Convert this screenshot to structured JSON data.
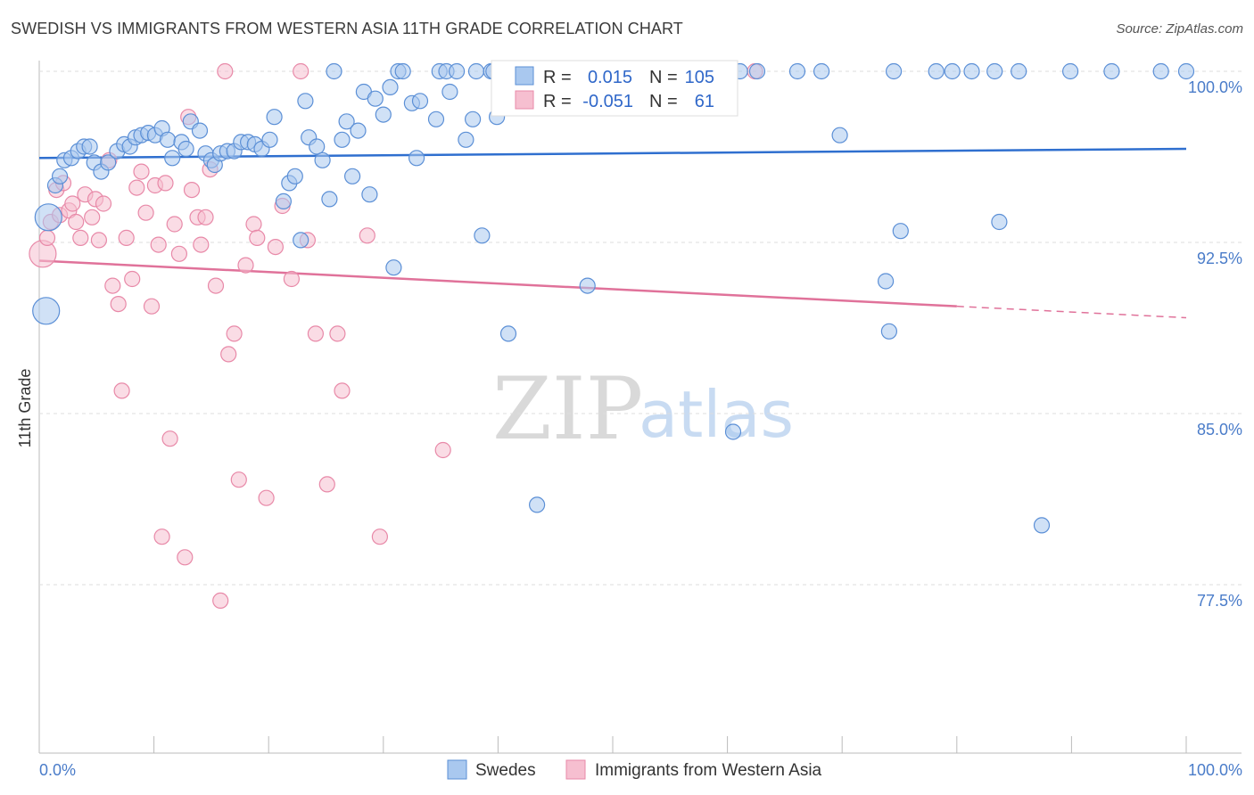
{
  "header": {
    "title": "SWEDISH VS IMMIGRANTS FROM WESTERN ASIA 11TH GRADE CORRELATION CHART",
    "source": "Source: ZipAtlas.com"
  },
  "watermark": {
    "zip": "ZIP",
    "atlas": "atlas"
  },
  "colors": {
    "swedes_fill": "#a9c8ef",
    "swedes_stroke": "#5b8fd6",
    "swedes_line": "#2f6fcf",
    "immig_fill": "#f6bfd0",
    "immig_stroke": "#e889a8",
    "immig_line": "#e0729a",
    "tick_text": "#4a7cc9"
  },
  "stats": {
    "swedes": {
      "r_label": "R =",
      "r_value": "0.015",
      "n_label": "N =",
      "n_value": "105"
    },
    "immig": {
      "r_label": "R =",
      "r_value": "-0.051",
      "n_label": "N =",
      "n_value": "61"
    }
  },
  "chart_data": {
    "type": "scatter",
    "title": "SWEDISH VS IMMIGRANTS FROM WESTERN ASIA 11TH GRADE CORRELATION CHART",
    "xlabel": "",
    "ylabel": "11th Grade",
    "xlim": [
      0,
      100
    ],
    "ylim": [
      70.5,
      101.5
    ],
    "x_tick_labels": [
      "0.0%",
      "100.0%"
    ],
    "y_ticks": [
      100.0,
      92.5,
      85.0,
      77.5
    ],
    "y_tick_labels": [
      "100.0%",
      "92.5%",
      "85.0%",
      "77.5%"
    ],
    "grid": "horizontal dashed",
    "legend_position": "bottom-center",
    "series": [
      {
        "name": "Swedes",
        "trend": {
          "x0": 0,
          "y0": 96.2,
          "x1": 100,
          "y1": 96.6,
          "dashed_from": null
        },
        "points": [
          [
            0.6,
            89.5,
            2
          ],
          [
            0.8,
            93.6,
            2
          ],
          [
            1.4,
            95.0,
            1
          ],
          [
            1.8,
            95.4,
            1
          ],
          [
            2.2,
            96.1,
            1
          ],
          [
            2.8,
            96.2,
            1
          ],
          [
            3.4,
            96.5,
            1
          ],
          [
            3.9,
            96.7,
            1
          ],
          [
            4.4,
            96.7,
            1
          ],
          [
            4.8,
            96.0,
            1
          ],
          [
            5.4,
            95.6,
            1
          ],
          [
            6.0,
            96.0,
            1
          ],
          [
            6.8,
            96.5,
            1
          ],
          [
            7.4,
            96.8,
            1
          ],
          [
            7.9,
            96.7,
            1
          ],
          [
            8.4,
            97.1,
            1
          ],
          [
            8.9,
            97.2,
            1
          ],
          [
            9.5,
            97.3,
            1
          ],
          [
            10.1,
            97.2,
            1
          ],
          [
            10.7,
            97.5,
            1
          ],
          [
            11.2,
            97.0,
            1
          ],
          [
            11.6,
            96.2,
            1
          ],
          [
            12.4,
            96.9,
            1
          ],
          [
            12.8,
            96.6,
            1
          ],
          [
            13.2,
            97.8,
            1
          ],
          [
            14.0,
            97.4,
            1
          ],
          [
            14.5,
            96.4,
            1
          ],
          [
            15.0,
            96.1,
            1
          ],
          [
            15.3,
            95.9,
            1
          ],
          [
            15.8,
            96.4,
            1
          ],
          [
            16.4,
            96.5,
            1
          ],
          [
            17.0,
            96.5,
            1
          ],
          [
            17.6,
            96.9,
            1
          ],
          [
            18.2,
            96.9,
            1
          ],
          [
            18.8,
            96.8,
            1
          ],
          [
            19.4,
            96.6,
            1
          ],
          [
            20.1,
            97.0,
            1
          ],
          [
            20.5,
            98.0,
            1
          ],
          [
            21.3,
            94.3,
            1
          ],
          [
            21.8,
            95.1,
            1
          ],
          [
            22.3,
            95.4,
            1
          ],
          [
            22.8,
            92.6,
            1
          ],
          [
            23.2,
            98.7,
            1
          ],
          [
            23.5,
            97.1,
            1
          ],
          [
            24.2,
            96.7,
            1
          ],
          [
            24.7,
            96.1,
            1
          ],
          [
            25.3,
            94.4,
            1
          ],
          [
            25.7,
            100.0,
            1
          ],
          [
            26.4,
            97.0,
            1
          ],
          [
            26.8,
            97.8,
            1
          ],
          [
            27.3,
            95.4,
            1
          ],
          [
            27.8,
            97.4,
            1
          ],
          [
            28.3,
            99.1,
            1
          ],
          [
            28.8,
            94.6,
            1
          ],
          [
            29.3,
            98.8,
            1
          ],
          [
            30.0,
            98.1,
            1
          ],
          [
            30.6,
            99.3,
            1
          ],
          [
            30.9,
            91.4,
            1
          ],
          [
            31.3,
            100.0,
            1
          ],
          [
            31.7,
            100.0,
            1
          ],
          [
            32.5,
            98.6,
            1
          ],
          [
            32.9,
            96.2,
            1
          ],
          [
            33.2,
            98.7,
            1
          ],
          [
            34.6,
            97.9,
            1
          ],
          [
            34.9,
            100.0,
            1
          ],
          [
            35.5,
            100.0,
            1
          ],
          [
            35.8,
            99.1,
            1
          ],
          [
            36.4,
            100.0,
            1
          ],
          [
            37.2,
            97.0,
            1
          ],
          [
            37.8,
            97.9,
            1
          ],
          [
            38.1,
            100.0,
            1
          ],
          [
            38.6,
            92.8,
            1
          ],
          [
            39.4,
            100.0,
            1
          ],
          [
            39.6,
            100.0,
            1
          ],
          [
            39.9,
            98.0,
            1
          ],
          [
            40.9,
            88.5,
            1
          ],
          [
            42.3,
            100.0,
            1
          ],
          [
            42.8,
            100.0,
            1
          ],
          [
            43.4,
            81.0,
            1
          ],
          [
            44.2,
            100.0,
            1
          ],
          [
            45.8,
            100.0,
            1
          ],
          [
            46.3,
            100.0,
            1
          ],
          [
            47.8,
            90.6,
            1
          ],
          [
            48.5,
            100.0,
            1
          ],
          [
            49.6,
            100.0,
            1
          ],
          [
            50.1,
            100.0,
            1
          ],
          [
            50.8,
            100.0,
            1
          ],
          [
            52.2,
            100.0,
            1
          ],
          [
            52.9,
            100.0,
            1
          ],
          [
            53.4,
            100.0,
            1
          ],
          [
            54.3,
            100.0,
            1
          ],
          [
            54.8,
            100.0,
            1
          ],
          [
            55.3,
            100.0,
            1
          ],
          [
            56.8,
            100.0,
            1
          ],
          [
            60.5,
            84.2,
            1
          ],
          [
            61.1,
            100.0,
            1
          ],
          [
            62.6,
            100.0,
            1
          ],
          [
            66.1,
            100.0,
            1
          ],
          [
            68.2,
            100.0,
            1
          ],
          [
            69.8,
            97.2,
            1
          ],
          [
            73.8,
            90.8,
            1
          ],
          [
            74.1,
            88.6,
            1
          ],
          [
            74.5,
            100.0,
            1
          ],
          [
            75.1,
            93.0,
            1
          ],
          [
            78.2,
            100.0,
            1
          ],
          [
            79.6,
            100.0,
            1
          ],
          [
            81.3,
            100.0,
            1
          ],
          [
            83.3,
            100.0,
            1
          ],
          [
            83.7,
            93.4,
            1
          ],
          [
            85.4,
            100.0,
            1
          ],
          [
            87.4,
            80.1,
            1
          ],
          [
            89.9,
            100.0,
            1
          ],
          [
            93.5,
            100.0,
            1
          ],
          [
            97.8,
            100.0,
            1
          ],
          [
            100.0,
            100.0,
            1
          ]
        ]
      },
      {
        "name": "Immigrants from Western Asia",
        "trend": {
          "x0": 0,
          "y0": 91.7,
          "x1": 80,
          "y1": 89.7,
          "dashed_from": 80,
          "x2": 100,
          "y2": 89.2
        },
        "points": [
          [
            0.3,
            92.0,
            2
          ],
          [
            0.7,
            92.7,
            1
          ],
          [
            1.0,
            93.4,
            1
          ],
          [
            1.5,
            94.8,
            1
          ],
          [
            1.8,
            93.7,
            1
          ],
          [
            2.1,
            95.1,
            1
          ],
          [
            2.6,
            93.9,
            1
          ],
          [
            2.9,
            94.2,
            1
          ],
          [
            3.2,
            93.4,
            1
          ],
          [
            3.6,
            92.7,
            1
          ],
          [
            4.0,
            94.6,
            1
          ],
          [
            4.6,
            93.6,
            1
          ],
          [
            4.9,
            94.4,
            1
          ],
          [
            5.2,
            92.6,
            1
          ],
          [
            5.6,
            94.2,
            1
          ],
          [
            6.1,
            96.1,
            1
          ],
          [
            6.4,
            90.6,
            1
          ],
          [
            6.9,
            89.8,
            1
          ],
          [
            7.2,
            86.0,
            1
          ],
          [
            7.6,
            92.7,
            1
          ],
          [
            8.1,
            90.9,
            1
          ],
          [
            8.5,
            94.9,
            1
          ],
          [
            8.9,
            95.6,
            1
          ],
          [
            9.3,
            93.8,
            1
          ],
          [
            9.8,
            89.7,
            1
          ],
          [
            10.1,
            95.0,
            1
          ],
          [
            10.4,
            92.4,
            1
          ],
          [
            10.7,
            79.6,
            1
          ],
          [
            11.0,
            95.1,
            1
          ],
          [
            11.4,
            83.9,
            1
          ],
          [
            11.8,
            93.3,
            1
          ],
          [
            12.2,
            92.0,
            1
          ],
          [
            12.7,
            78.7,
            1
          ],
          [
            13.0,
            98.0,
            1
          ],
          [
            13.3,
            94.8,
            1
          ],
          [
            13.8,
            93.6,
            1
          ],
          [
            14.1,
            92.4,
            1
          ],
          [
            14.5,
            93.6,
            1
          ],
          [
            14.9,
            95.7,
            1
          ],
          [
            15.4,
            90.6,
            1
          ],
          [
            15.8,
            76.8,
            1
          ],
          [
            16.2,
            100.0,
            1
          ],
          [
            16.5,
            87.6,
            1
          ],
          [
            17.0,
            88.5,
            1
          ],
          [
            17.4,
            82.1,
            1
          ],
          [
            18.0,
            91.5,
            1
          ],
          [
            18.7,
            93.3,
            1
          ],
          [
            19.0,
            92.7,
            1
          ],
          [
            19.8,
            81.3,
            1
          ],
          [
            20.6,
            92.3,
            1
          ],
          [
            21.2,
            94.1,
            1
          ],
          [
            22.0,
            90.9,
            1
          ],
          [
            22.8,
            100.0,
            1
          ],
          [
            23.4,
            92.6,
            1
          ],
          [
            24.1,
            88.5,
            1
          ],
          [
            25.1,
            81.9,
            1
          ],
          [
            26.0,
            88.5,
            1
          ],
          [
            26.4,
            86.0,
            1
          ],
          [
            28.6,
            92.8,
            1
          ],
          [
            29.7,
            79.6,
            1
          ],
          [
            35.2,
            83.4,
            1
          ],
          [
            62.4,
            100.0,
            1
          ]
        ]
      }
    ]
  },
  "legend": {
    "swedes": "Swedes",
    "immig": "Immigrants from Western Asia"
  }
}
